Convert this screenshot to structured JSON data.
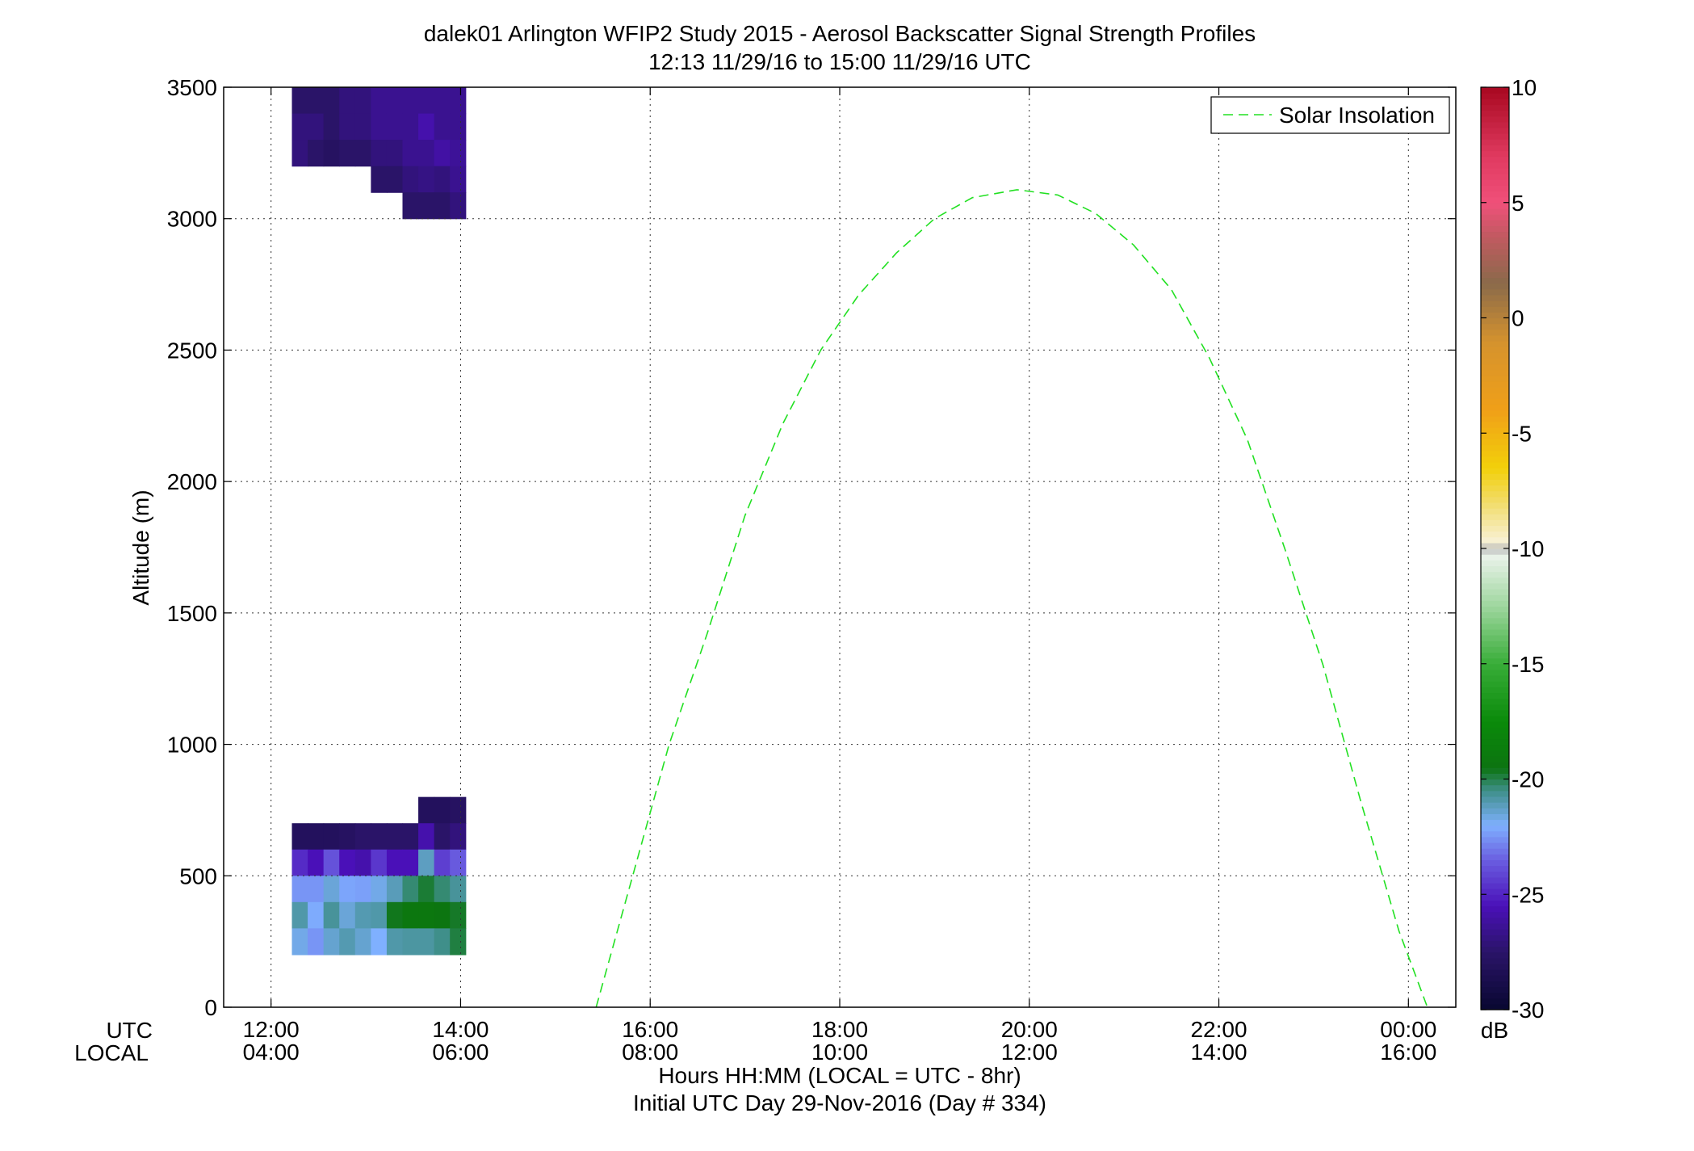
{
  "chart_data": {
    "type": "heatmap",
    "title": "dalek01 Arlington WFIP2 Study 2015 - Aerosol Backscatter Signal Strength Profiles",
    "subtitle": "12:13 11/29/16 to 15:00 11/29/16  UTC",
    "ylabel": "Altitude (m)",
    "xlabel": "Hours HH:MM  (LOCAL = UTC - 8hr)",
    "xlabel2": "Initial UTC Day 29-Nov-2016 (Day # 334)",
    "x_row_labels": [
      "UTC",
      "LOCAL"
    ],
    "xlim": [
      11.5,
      24.5
    ],
    "ylim": [
      0,
      3500
    ],
    "x_ticks": [
      12,
      14,
      16,
      18,
      20,
      22,
      24
    ],
    "x_tick_labels_utc": [
      "12:00",
      "14:00",
      "16:00",
      "18:00",
      "20:00",
      "22:00",
      "00:00"
    ],
    "x_tick_labels_local": [
      "04:00",
      "06:00",
      "08:00",
      "10:00",
      "12:00",
      "14:00",
      "16:00"
    ],
    "y_ticks": [
      0,
      500,
      1000,
      1500,
      2000,
      2500,
      3000,
      3500
    ],
    "y_tick_labels": [
      "0",
      "500",
      "1000",
      "1500",
      "2000",
      "2500",
      "3000",
      "3500"
    ],
    "grid": true,
    "legend": {
      "position": "top-right",
      "entries": [
        {
          "name": "Solar Insolation",
          "style": "dashed",
          "color": "#22e022"
        }
      ]
    },
    "colorbar": {
      "label": "dB",
      "range": [
        -30,
        10
      ],
      "ticks": [
        -30,
        -25,
        -20,
        -15,
        -10,
        -5,
        0,
        5,
        10
      ],
      "tick_labels": [
        "-30",
        "-25",
        "-20",
        "-15",
        "-10",
        "-5",
        "0",
        "5",
        "10"
      ],
      "stops": [
        [
          -30,
          "#080730"
        ],
        [
          -27.5,
          "#2a1468"
        ],
        [
          -25.5,
          "#4a10b8"
        ],
        [
          -23.5,
          "#6a5ee0"
        ],
        [
          -22,
          "#7fb0ff"
        ],
        [
          -20.5,
          "#3f8f8a"
        ],
        [
          -19.5,
          "#0c7410"
        ],
        [
          -17.5,
          "#0a8a0a"
        ],
        [
          -15,
          "#38ad38"
        ],
        [
          -12.5,
          "#9ed69e"
        ],
        [
          -10.2,
          "#eef4ee"
        ],
        [
          -10,
          "#999999"
        ],
        [
          -9.8,
          "#f8f2dc"
        ],
        [
          -8,
          "#f2dc6a"
        ],
        [
          -6.5,
          "#f2d00a"
        ],
        [
          -4,
          "#f0a018"
        ],
        [
          -1,
          "#d4922e"
        ],
        [
          1.5,
          "#8a6a4a"
        ],
        [
          3.5,
          "#c05a60"
        ],
        [
          5,
          "#f0507a"
        ],
        [
          7,
          "#e03a60"
        ],
        [
          10,
          "#a80820"
        ]
      ]
    },
    "heatmap": {
      "x_start": 12.22,
      "x_step": 0.1667,
      "y_step": 100,
      "rows_top": [
        {
          "y": 3400,
          "values": [
            -27.5,
            -27.5,
            -27.5,
            -27,
            -27,
            -26.5,
            -26.5,
            -26.5,
            -26.5,
            -26.5,
            -26.5
          ]
        },
        {
          "y": 3300,
          "values": [
            -27,
            -27,
            -27.5,
            -27,
            -27,
            -26.5,
            -26.5,
            -26.5,
            -25.8,
            -26.5,
            -26.5
          ]
        },
        {
          "y": 3200,
          "values": [
            -27,
            -27.5,
            -27.8,
            -27.5,
            -27.5,
            -27,
            -27,
            -26.5,
            -26.5,
            -26,
            -26.3
          ]
        },
        {
          "y": 3100,
          "values": [
            null,
            null,
            null,
            null,
            null,
            -27.5,
            -27.5,
            -27,
            -26.8,
            -27,
            -26.5
          ]
        },
        {
          "y": 3000,
          "values": [
            null,
            null,
            null,
            null,
            null,
            null,
            null,
            -27.5,
            -27.5,
            -27.5,
            -27
          ]
        }
      ],
      "rows_bottom": [
        {
          "y": 700,
          "values": [
            null,
            null,
            null,
            null,
            null,
            null,
            null,
            null,
            -28,
            -28,
            -27.8
          ]
        },
        {
          "y": 600,
          "values": [
            -28,
            -28,
            -28,
            -27.8,
            -27.5,
            -27.5,
            -27.5,
            -27.5,
            -25.8,
            -27.5,
            -27
          ]
        },
        {
          "y": 500,
          "values": [
            -24.8,
            -25.5,
            -23.8,
            -25.5,
            -25.8,
            -24.5,
            -25.5,
            -25.5,
            -21.2,
            -24.3,
            -23.6
          ]
        },
        {
          "y": 400,
          "values": [
            -22.5,
            -22.5,
            -21.5,
            -22.2,
            -22.3,
            -21.7,
            -21.1,
            -20.3,
            -19.8,
            -20.3,
            -20.7
          ]
        },
        {
          "y": 300,
          "values": [
            -20.9,
            -22.1,
            -20.7,
            -21.5,
            -21,
            -20.9,
            -19.6,
            -19.2,
            -19.2,
            -19.4,
            -19.7
          ]
        },
        {
          "y": 200,
          "values": [
            -21.7,
            -22.5,
            -21.4,
            -21,
            -21.4,
            -22,
            -20.9,
            -20.8,
            -20.8,
            -20.5,
            -19.9
          ]
        }
      ]
    },
    "series": [
      {
        "name": "Solar Insolation",
        "type": "line",
        "style": "dashed",
        "x": [
          15.43,
          15.8,
          16.2,
          16.6,
          17.0,
          17.4,
          17.8,
          18.2,
          18.6,
          19.0,
          19.4,
          19.87,
          20.3,
          20.7,
          21.1,
          21.5,
          21.9,
          22.3,
          22.7,
          23.1,
          23.5,
          23.9,
          24.2
        ],
        "y": [
          0,
          480,
          1000,
          1420,
          1870,
          2220,
          2500,
          2710,
          2870,
          3000,
          3080,
          3110,
          3090,
          3020,
          2900,
          2730,
          2470,
          2160,
          1740,
          1300,
          780,
          290,
          0
        ]
      }
    ]
  }
}
